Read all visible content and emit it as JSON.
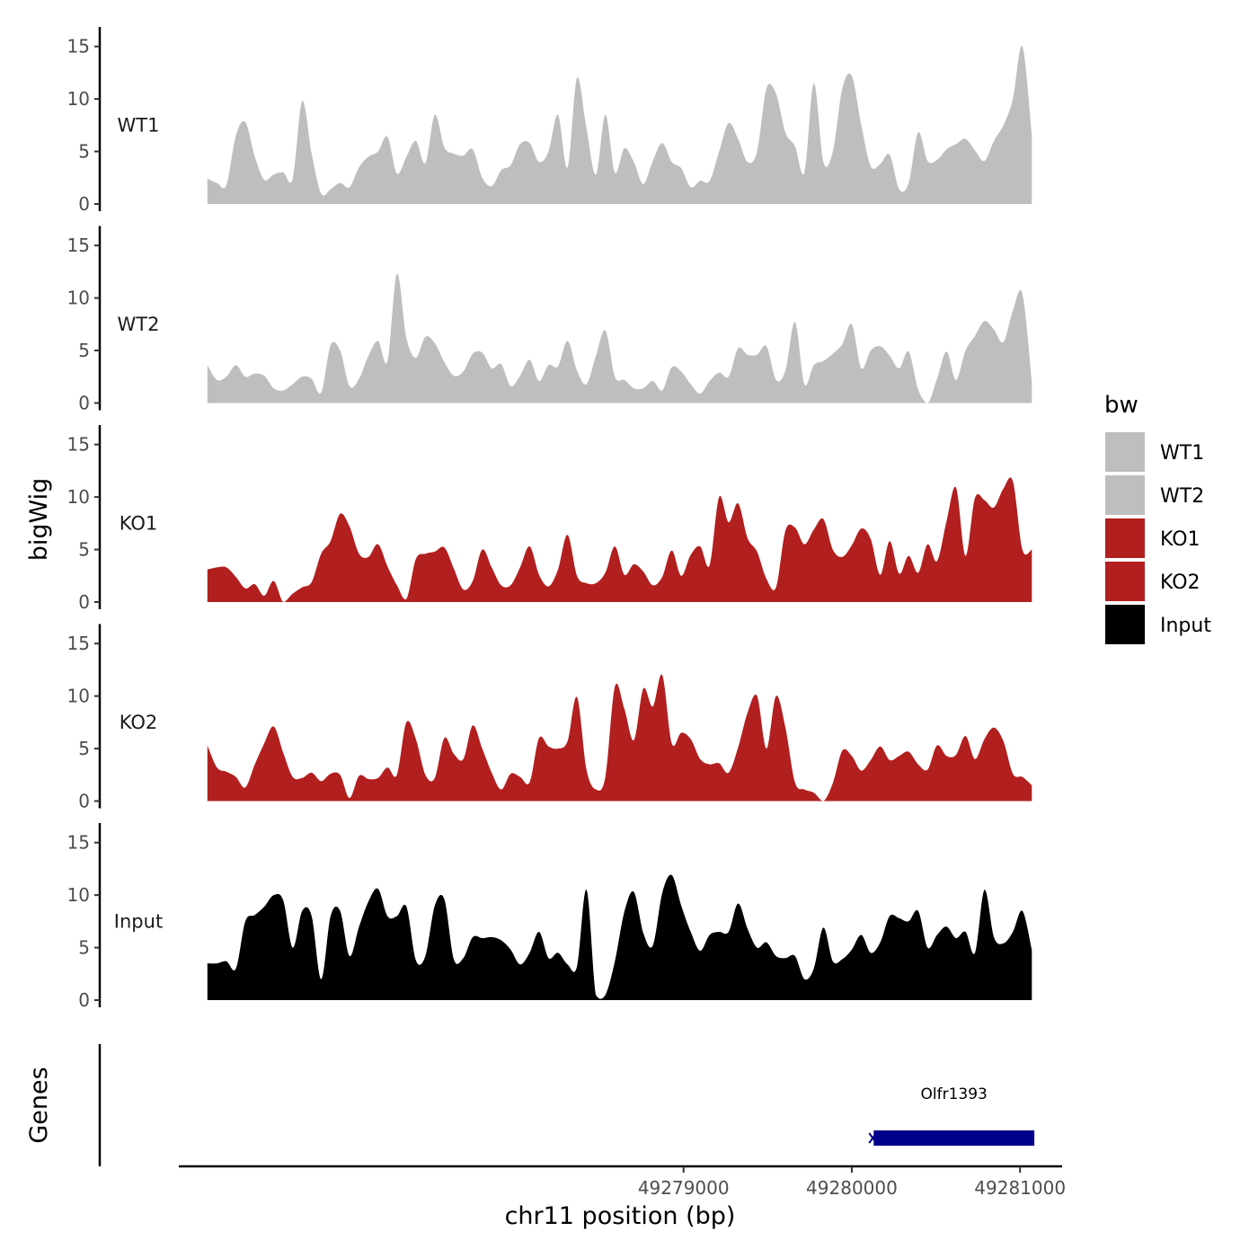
{
  "chart_data": {
    "type": "area",
    "chromosome": "chr11",
    "xlabel": "chr11 position (bp)",
    "ylabel_tracks": "bigWig",
    "ylabel_genes": "Genes",
    "xlim": [
      49276000,
      49281250
    ],
    "x_ticks": [
      49279000,
      49280000,
      49281000
    ],
    "x_tick_labels": [
      "49279000",
      "49280000",
      "49281000"
    ],
    "ylim": [
      0,
      16
    ],
    "y_ticks": [
      0,
      5,
      10,
      15
    ],
    "y_tick_labels": [
      "0",
      "5",
      "10",
      "15"
    ],
    "x_start": 49276170,
    "x_end": 49281070,
    "legend": {
      "title": "bw",
      "position": "right",
      "entries": [
        {
          "label": "WT1",
          "color": "#bebebe"
        },
        {
          "label": "WT2",
          "color": "#bebebe"
        },
        {
          "label": "KO1",
          "color": "#b21f1f"
        },
        {
          "label": "KO2",
          "color": "#b21f1f"
        },
        {
          "label": "Input",
          "color": "#000000"
        }
      ]
    },
    "series": [
      {
        "name": "WT1",
        "color": "#bebebe",
        "values": [
          2.4,
          2.0,
          1.8,
          6.5,
          7.8,
          4.5,
          2.3,
          2.8,
          3.0,
          2.4,
          9.8,
          4.8,
          1.0,
          1.4,
          2.0,
          1.6,
          3.5,
          4.5,
          5.0,
          6.4,
          2.9,
          4.5,
          6.0,
          3.9,
          8.5,
          5.4,
          4.8,
          4.6,
          5.2,
          2.5,
          1.7,
          3.2,
          3.7,
          5.7,
          5.8,
          4.0,
          5.0,
          8.5,
          3.5,
          12.0,
          7.2,
          2.8,
          8.5,
          3.0,
          5.3,
          4.0,
          1.9,
          4.1,
          5.8,
          4.0,
          3.4,
          1.6,
          2.2,
          2.2,
          5.0,
          7.7,
          6.2,
          4.0,
          5.0,
          11.0,
          10.5,
          6.8,
          5.5,
          3.0,
          11.5,
          4.0,
          5.0,
          11.0,
          12.2,
          7.5,
          3.6,
          3.8,
          4.7,
          1.4,
          2.0,
          6.8,
          4.1,
          4.2,
          5.2,
          5.7,
          6.2,
          5.1,
          4.1,
          6.0,
          7.5,
          10.0,
          15.0,
          6.5
        ]
      },
      {
        "name": "WT2",
        "color": "#bebebe",
        "values": [
          3.6,
          2.2,
          2.5,
          3.6,
          2.5,
          2.8,
          2.6,
          1.4,
          1.2,
          1.8,
          2.5,
          2.3,
          1.0,
          5.5,
          5.0,
          1.6,
          2.3,
          4.5,
          5.9,
          4.0,
          12.3,
          6.2,
          4.3,
          6.3,
          5.7,
          3.9,
          2.6,
          3.0,
          4.7,
          4.8,
          3.3,
          3.7,
          1.6,
          2.6,
          4.1,
          2.1,
          3.6,
          3.5,
          5.9,
          3.1,
          1.8,
          4.5,
          6.9,
          2.5,
          2.2,
          1.4,
          1.4,
          2.1,
          1.2,
          3.4,
          3.0,
          1.8,
          0.9,
          2.1,
          2.9,
          2.5,
          5.2,
          4.6,
          4.6,
          5.4,
          2.2,
          3.1,
          7.7,
          1.8,
          3.6,
          4.0,
          4.7,
          5.6,
          7.5,
          3.3,
          5.0,
          5.4,
          4.5,
          3.3,
          4.9,
          1.3,
          0.0,
          2.3,
          4.9,
          2.2,
          5.0,
          6.4,
          7.8,
          7.0,
          5.8,
          8.8,
          10.4,
          2.0
        ]
      },
      {
        "name": "KO1",
        "color": "#b21f1f",
        "values": [
          3.1,
          3.3,
          3.3,
          2.4,
          1.3,
          1.7,
          0.6,
          2.0,
          0.0,
          0.8,
          1.4,
          1.9,
          4.6,
          5.8,
          8.4,
          7.2,
          4.6,
          4.3,
          5.5,
          3.4,
          1.6,
          0.3,
          4.1,
          4.6,
          4.8,
          5.2,
          3.2,
          1.2,
          2.0,
          5.0,
          3.3,
          1.6,
          1.6,
          3.3,
          5.3,
          2.6,
          1.5,
          3.1,
          6.4,
          2.5,
          1.8,
          1.8,
          2.8,
          5.3,
          2.6,
          3.6,
          2.9,
          1.6,
          2.4,
          4.9,
          2.5,
          4.5,
          5.3,
          3.5,
          10.0,
          7.6,
          9.4,
          6.1,
          4.8,
          2.2,
          1.4,
          6.8,
          7.1,
          5.5,
          6.9,
          7.9,
          5.0,
          4.3,
          5.4,
          7.0,
          6.0,
          2.6,
          5.8,
          2.7,
          4.4,
          2.8,
          5.5,
          3.9,
          7.7,
          10.9,
          4.4,
          9.9,
          9.7,
          9.0,
          10.8,
          11.5,
          5.0,
          5.0
        ]
      },
      {
        "name": "KO2",
        "color": "#b21f1f",
        "values": [
          5.3,
          3.2,
          2.8,
          2.3,
          1.3,
          3.5,
          5.5,
          7.1,
          4.6,
          2.3,
          2.2,
          2.7,
          1.9,
          2.6,
          2.5,
          0.3,
          2.4,
          2.1,
          2.2,
          3.2,
          2.5,
          7.5,
          5.9,
          2.5,
          2.2,
          6.0,
          4.5,
          4.0,
          7.2,
          5.0,
          2.7,
          1.1,
          2.6,
          2.3,
          1.8,
          6.0,
          5.2,
          5.0,
          5.7,
          9.9,
          3.0,
          1.1,
          2.3,
          10.9,
          8.8,
          5.8,
          10.7,
          9.0,
          12.0,
          5.5,
          6.5,
          5.9,
          4.0,
          3.5,
          3.6,
          2.7,
          5.1,
          8.4,
          10.0,
          5.0,
          10.0,
          7.0,
          1.8,
          1.1,
          0.8,
          0.0,
          1.7,
          4.8,
          4.3,
          2.9,
          3.9,
          5.2,
          3.9,
          4.3,
          4.7,
          3.5,
          3.0,
          5.3,
          4.3,
          4.4,
          6.2,
          4.0,
          5.9,
          7.0,
          5.7,
          2.6,
          2.3,
          1.5
        ]
      },
      {
        "name": "Input",
        "color": "#000000",
        "values": [
          3.5,
          3.5,
          3.7,
          3.0,
          7.5,
          8.1,
          8.9,
          10.0,
          9.5,
          5.0,
          8.5,
          8.0,
          2.0,
          8.0,
          8.5,
          4.2,
          7.0,
          9.4,
          10.6,
          8.0,
          8.0,
          8.9,
          3.8,
          4.2,
          9.0,
          9.6,
          3.9,
          4.0,
          6.0,
          5.9,
          6.0,
          5.7,
          4.8,
          3.4,
          4.5,
          6.5,
          4.0,
          4.5,
          3.4,
          3.2,
          10.5,
          0.5,
          0.5,
          3.7,
          8.4,
          10.3,
          6.4,
          5.2,
          10.2,
          11.9,
          9.0,
          6.5,
          4.7,
          6.2,
          6.5,
          6.5,
          9.2,
          6.8,
          5.0,
          5.5,
          4.2,
          4.0,
          4.2,
          2.0,
          3.0,
          6.9,
          3.7,
          3.9,
          4.8,
          6.2,
          4.5,
          5.5,
          8.0,
          7.8,
          7.5,
          8.5,
          5.0,
          6.2,
          7.0,
          5.9,
          6.5,
          4.5,
          10.5,
          6.0,
          5.4,
          6.5,
          8.5,
          4.8
        ]
      }
    ],
    "genes": [
      {
        "name": "Olfr1393",
        "start": 49280130,
        "end": 49281085,
        "strand": "-",
        "color": "#00008b"
      }
    ]
  }
}
